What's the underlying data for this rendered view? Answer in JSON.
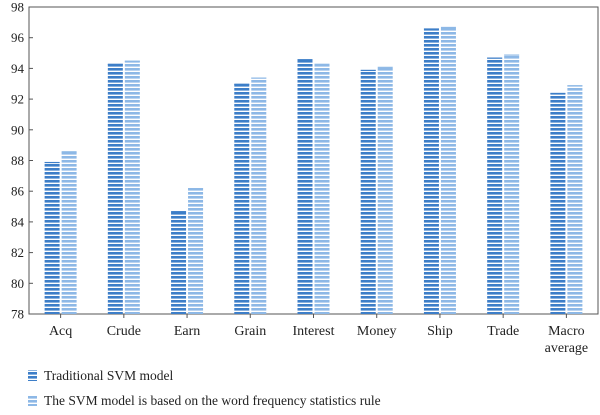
{
  "chart_data": {
    "type": "bar",
    "title": "",
    "xlabel": "",
    "ylabel": "",
    "categories": [
      [
        "Acq"
      ],
      [
        "Crude"
      ],
      [
        "Earn"
      ],
      [
        "Grain"
      ],
      [
        "Interest"
      ],
      [
        "Money"
      ],
      [
        "Ship"
      ],
      [
        "Trade"
      ],
      [
        "Macro",
        "average"
      ]
    ],
    "series": [
      {
        "name": "Traditional SVM model",
        "color": "#3d7ec8",
        "values": [
          87.9,
          94.3,
          84.7,
          93.0,
          94.6,
          93.9,
          96.6,
          94.7,
          92.4
        ]
      },
      {
        "name": "The SVM model is based on the word frequency statistics rule",
        "color": "#8db8e6",
        "values": [
          88.6,
          94.5,
          86.2,
          93.4,
          94.3,
          94.1,
          96.7,
          94.9,
          92.9
        ]
      }
    ],
    "ylim": [
      78,
      98
    ],
    "yticks": [
      78,
      80,
      82,
      84,
      86,
      88,
      90,
      92,
      94,
      96,
      98
    ],
    "grid": false,
    "legend_position": "bottom-left",
    "bar_style": "horizontal-stripes"
  }
}
